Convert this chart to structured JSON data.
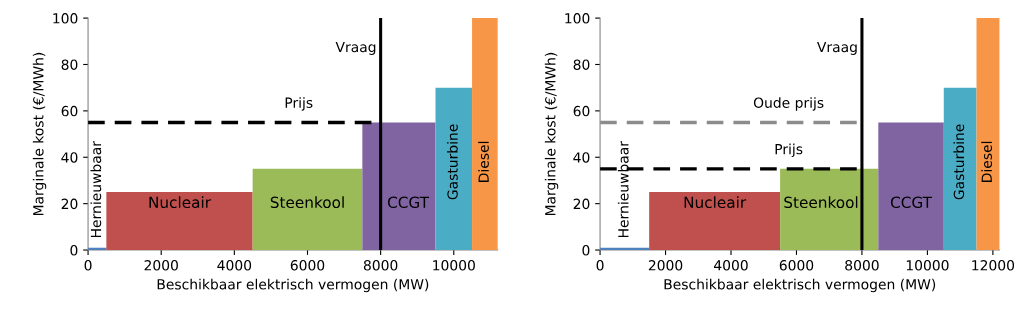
{
  "chart_data": [
    {
      "type": "histogram",
      "xlabel": "Beschikbaar elektrisch vermogen (MW)",
      "ylabel": "Marginale kost (€/MWh)",
      "bins": [
        0,
        500,
        4500,
        7500,
        9500,
        10500,
        11200
      ],
      "values": [
        1,
        25,
        35,
        55,
        70,
        100
      ],
      "colors": [
        "#4f81bd",
        "#c0504d",
        "#9bbb59",
        "#8064a2",
        "#4bacc6",
        "#f79646"
      ],
      "xlim": [
        0,
        11200
      ],
      "xticks": [
        0,
        2000,
        4000,
        6000,
        8000,
        10000
      ],
      "ylim": [
        0,
        100
      ],
      "yticks": [
        0,
        20,
        40,
        60,
        80,
        100
      ],
      "grid": false,
      "ref_lines": [
        {
          "axis": "x",
          "value": 8000,
          "color": "#000000",
          "line_style": "solid",
          "label": "Vraag"
        },
        {
          "axis": "y",
          "value": 55,
          "color": "#000000",
          "line_style": "dashed",
          "label": "Prijs"
        }
      ],
      "annotations": [
        "Hernieuwbaar",
        "Nucleair",
        "Steenkool",
        "CCGT",
        "Gasturbine",
        "Diesel"
      ]
    },
    {
      "type": "histogram",
      "xlabel": "Beschikbaar elektrisch vermogen (MW)",
      "ylabel": "Marginale kost (€/MWh)",
      "bins": [
        0,
        1500,
        5500,
        8500,
        10500,
        11500,
        12200
      ],
      "values": [
        1,
        25,
        35,
        55,
        70,
        100
      ],
      "colors": [
        "#4f81bd",
        "#c0504d",
        "#9bbb59",
        "#8064a2",
        "#4bacc6",
        "#f79646"
      ],
      "xlim": [
        0,
        12200
      ],
      "xticks": [
        0,
        2000,
        4000,
        6000,
        8000,
        10000,
        12000
      ],
      "ylim": [
        0,
        100
      ],
      "yticks": [
        0,
        20,
        40,
        60,
        80,
        100
      ],
      "grid": false,
      "ref_lines": [
        {
          "axis": "x",
          "value": 8000,
          "color": "#000000",
          "line_style": "solid",
          "label": "Vraag"
        },
        {
          "axis": "y",
          "value": 55,
          "color": "#8c8c8c",
          "line_style": "dashed",
          "label": "Oude prijs"
        },
        {
          "axis": "y",
          "value": 35,
          "color": "#000000",
          "line_style": "dashed",
          "label": "Prijs"
        }
      ],
      "annotations": [
        "Hernieuwbaar",
        "Nucleair",
        "Steenkool",
        "CCGT",
        "Gasturbine",
        "Diesel"
      ]
    }
  ]
}
